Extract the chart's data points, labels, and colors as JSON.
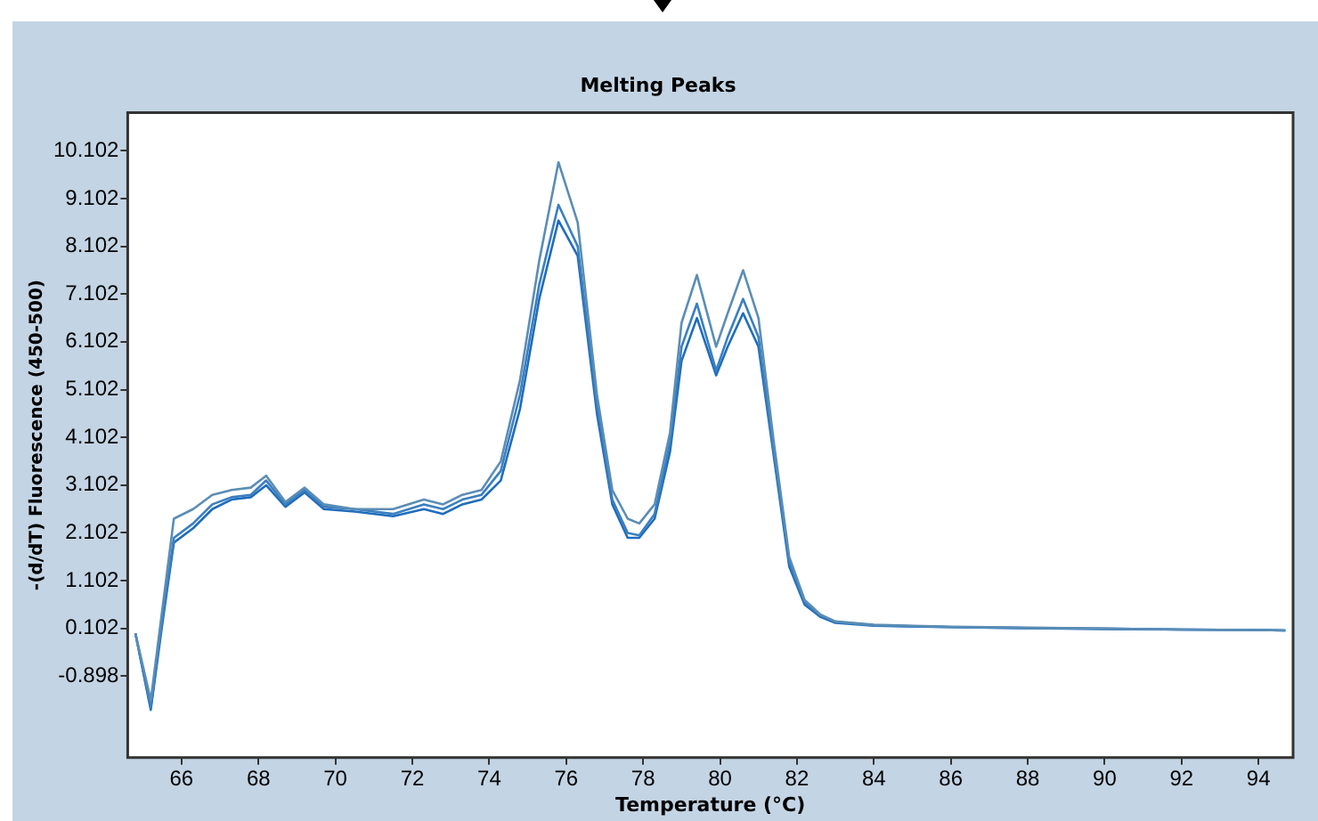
{
  "chart_data": {
    "type": "line",
    "title": "Melting Peaks",
    "xlabel": "Temperature (°C)",
    "ylabel": "-(d/dT) Fluorescence (450-500)",
    "x": [
      64.8,
      65.2,
      65.5,
      65.8,
      66.3,
      66.8,
      67.3,
      67.8,
      68.2,
      68.7,
      69.2,
      69.7,
      70.5,
      71.5,
      72.3,
      72.8,
      73.3,
      73.8,
      74.3,
      74.8,
      75.3,
      75.8,
      76.3,
      76.8,
      77.2,
      77.6,
      77.9,
      78.3,
      78.7,
      79.0,
      79.4,
      79.9,
      80.2,
      80.6,
      81.0,
      81.4,
      81.8,
      82.2,
      82.6,
      83.0,
      84.0,
      86.0,
      88.0,
      90.0,
      92.0,
      94.0,
      94.7
    ],
    "series": [
      {
        "color": "#5b8db5",
        "values": [
          0.0,
          -1.4,
          0.5,
          2.4,
          2.6,
          2.9,
          3.0,
          3.05,
          3.3,
          2.75,
          3.05,
          2.7,
          2.6,
          2.6,
          2.8,
          2.7,
          2.9,
          3.0,
          3.6,
          5.3,
          7.8,
          9.86,
          8.6,
          5.0,
          3.0,
          2.4,
          2.3,
          2.7,
          4.2,
          6.5,
          7.5,
          6.0,
          6.7,
          7.6,
          6.6,
          4.0,
          1.6,
          0.7,
          0.4,
          0.25,
          0.18,
          0.14,
          0.12,
          0.1,
          0.08,
          0.07,
          0.06
        ]
      },
      {
        "color": "#3a7fc0",
        "values": [
          0.0,
          -1.55,
          0.3,
          2.0,
          2.3,
          2.7,
          2.85,
          2.9,
          3.2,
          2.7,
          3.0,
          2.65,
          2.6,
          2.5,
          2.7,
          2.6,
          2.8,
          2.9,
          3.4,
          5.0,
          7.3,
          8.97,
          8.1,
          4.8,
          2.8,
          2.1,
          2.05,
          2.5,
          4.0,
          6.0,
          6.9,
          5.5,
          6.2,
          7.0,
          6.2,
          3.8,
          1.5,
          0.65,
          0.38,
          0.24,
          0.17,
          0.13,
          0.11,
          0.1,
          0.08,
          0.07,
          0.06
        ]
      },
      {
        "color": "#1f6dbd",
        "values": [
          0.0,
          -1.6,
          0.2,
          1.9,
          2.2,
          2.6,
          2.8,
          2.85,
          3.1,
          2.65,
          2.95,
          2.6,
          2.55,
          2.45,
          2.6,
          2.5,
          2.7,
          2.8,
          3.2,
          4.7,
          7.0,
          8.64,
          7.9,
          4.6,
          2.7,
          2.0,
          2.0,
          2.4,
          3.8,
          5.7,
          6.6,
          5.4,
          6.0,
          6.7,
          6.0,
          3.7,
          1.4,
          0.6,
          0.35,
          0.22,
          0.16,
          0.13,
          0.11,
          0.09,
          0.08,
          0.07,
          0.06
        ]
      }
    ],
    "xlim": [
      64.6,
      94.9
    ],
    "xticks": [
      66,
      68,
      70,
      72,
      74,
      76,
      78,
      80,
      82,
      84,
      86,
      88,
      90,
      92,
      94
    ],
    "ylim": [
      -2.6,
      10.9
    ],
    "yticks": [
      -0.898,
      0.102,
      1.102,
      2.102,
      3.102,
      4.102,
      5.102,
      6.102,
      7.102,
      8.102,
      9.102,
      10.102
    ],
    "grid": false,
    "legend": false,
    "marker": "none",
    "line_style": "solid"
  }
}
